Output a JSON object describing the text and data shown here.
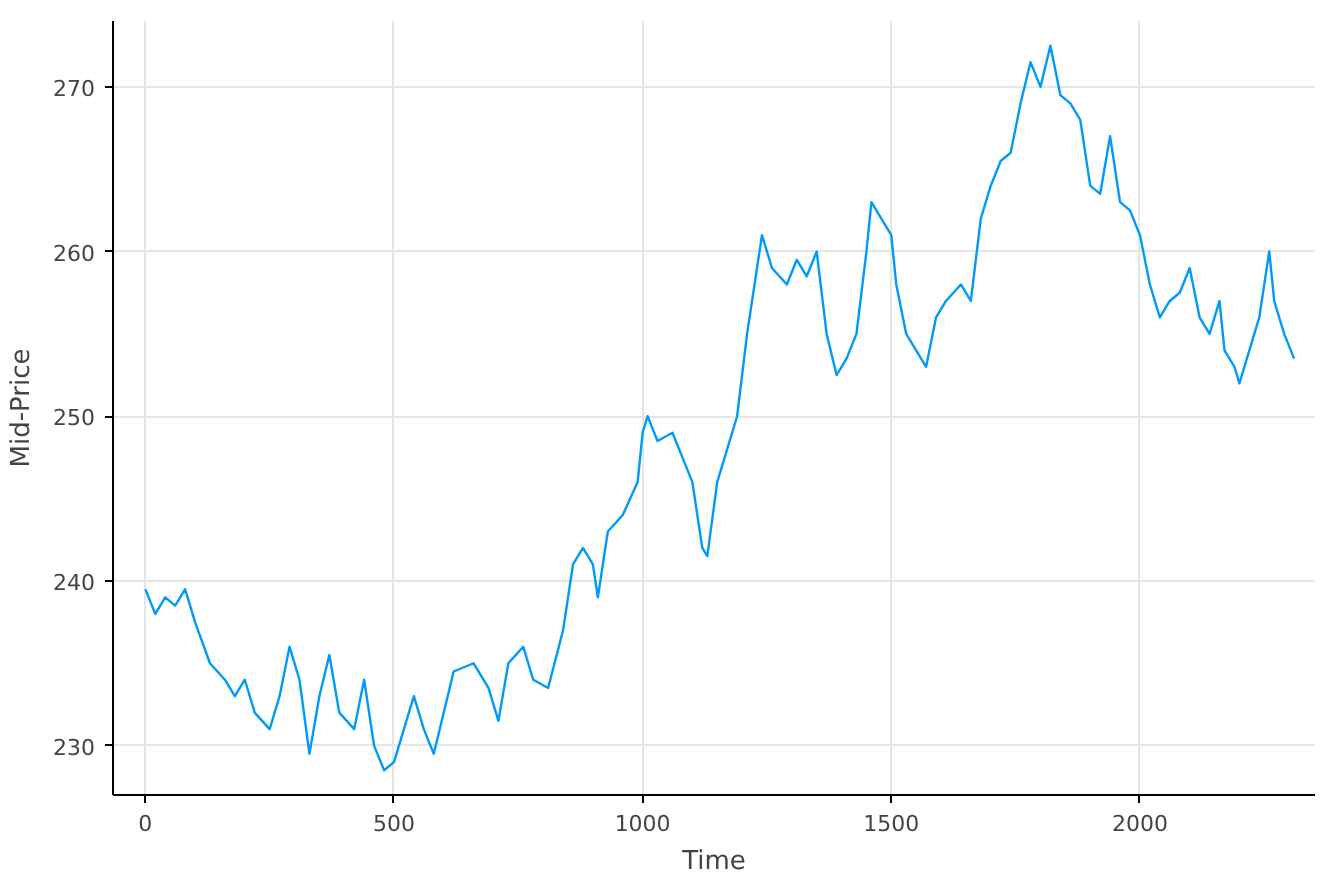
{
  "chart_data": {
    "type": "line",
    "xlabel": "Time",
    "ylabel": "Mid-Price",
    "xlim": [
      -65,
      2352
    ],
    "ylim": [
      227,
      274
    ],
    "xticks": [
      0,
      500,
      1000,
      1500,
      2000
    ],
    "yticks": [
      230,
      240,
      250,
      260,
      270
    ],
    "grid": true,
    "marker": "none",
    "line_style": "solid",
    "series": [
      {
        "color": "#009af9",
        "x": [
          0,
          20,
          40,
          60,
          80,
          100,
          130,
          160,
          180,
          200,
          220,
          250,
          270,
          290,
          310,
          330,
          350,
          370,
          390,
          420,
          440,
          460,
          480,
          500,
          520,
          540,
          560,
          580,
          600,
          620,
          660,
          690,
          710,
          730,
          760,
          780,
          810,
          840,
          860,
          880,
          900,
          910,
          930,
          960,
          990,
          1000,
          1010,
          1030,
          1060,
          1080,
          1100,
          1120,
          1130,
          1150,
          1170,
          1190,
          1210,
          1230,
          1240,
          1260,
          1290,
          1310,
          1330,
          1350,
          1370,
          1390,
          1410,
          1430,
          1450,
          1460,
          1480,
          1500,
          1510,
          1530,
          1550,
          1570,
          1590,
          1610,
          1640,
          1660,
          1680,
          1700,
          1720,
          1740,
          1760,
          1780,
          1800,
          1820,
          1840,
          1860,
          1880,
          1900,
          1920,
          1940,
          1960,
          1980,
          2000,
          2020,
          2040,
          2060,
          2080,
          2100,
          2120,
          2140,
          2160,
          2170,
          2190,
          2200,
          2220,
          2240,
          2260,
          2270,
          2290,
          2310
        ],
        "values": [
          239.5,
          238,
          239,
          238.5,
          239.5,
          237.5,
          235,
          234,
          233,
          234,
          232,
          231,
          233,
          236,
          234,
          229.5,
          233,
          235.5,
          232,
          231,
          234,
          230,
          228.5,
          229,
          231,
          233,
          231,
          229.5,
          232,
          234.5,
          235,
          233.5,
          231.5,
          235,
          236,
          234,
          233.5,
          237,
          241,
          242,
          241,
          239,
          243,
          244,
          246,
          249,
          250,
          248.5,
          249,
          247.5,
          246,
          242,
          241.5,
          246,
          248,
          250,
          255,
          259,
          261,
          259,
          258,
          259.5,
          258.5,
          260,
          255,
          252.5,
          253.5,
          255,
          260,
          263,
          262,
          261,
          258,
          255,
          254,
          253,
          256,
          257,
          258,
          257,
          262,
          264,
          265.5,
          266,
          269,
          271.5,
          270,
          272.5,
          269.5,
          269,
          268,
          264,
          263.5,
          267,
          263,
          262.5,
          261,
          258,
          256,
          257,
          257.5,
          259,
          256,
          255,
          257,
          254,
          253,
          252,
          254,
          256,
          260,
          257,
          255,
          253.5
        ]
      }
    ]
  }
}
